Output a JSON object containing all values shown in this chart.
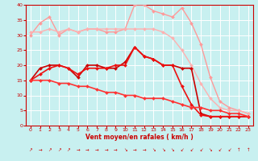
{
  "title": "",
  "xlabel": "Vent moyen/en rafales ( km/h )",
  "bg_color": "#c8f0f0",
  "grid_color": "#ffffff",
  "xlim": [
    -0.5,
    23.5
  ],
  "ylim": [
    0,
    40
  ],
  "yticks": [
    0,
    5,
    10,
    15,
    20,
    25,
    30,
    35,
    40
  ],
  "xticks": [
    0,
    1,
    2,
    3,
    4,
    5,
    6,
    7,
    8,
    9,
    10,
    11,
    12,
    13,
    14,
    15,
    16,
    17,
    18,
    19,
    20,
    21,
    22,
    23
  ],
  "series": [
    {
      "x": [
        0,
        1,
        2,
        3,
        4,
        5,
        6,
        7,
        8,
        9,
        10,
        11,
        12,
        13,
        14,
        15,
        16,
        17,
        18,
        19,
        20,
        21,
        22,
        23
      ],
      "y": [
        30,
        34,
        36,
        30,
        32,
        31,
        32,
        32,
        31,
        31,
        32,
        40,
        40,
        38,
        37,
        36,
        39,
        34,
        27,
        16,
        8,
        6,
        5,
        4
      ],
      "color": "#ff9999",
      "lw": 1.0,
      "marker": "D",
      "ms": 2.0
    },
    {
      "x": [
        0,
        1,
        2,
        3,
        4,
        5,
        6,
        7,
        8,
        9,
        10,
        11,
        12,
        13,
        14,
        15,
        16,
        17,
        18,
        19,
        20,
        21,
        22,
        23
      ],
      "y": [
        31,
        31,
        32,
        31,
        32,
        31,
        32,
        32,
        32,
        32,
        32,
        32,
        32,
        32,
        31,
        29,
        25,
        20,
        14,
        9,
        6,
        5,
        5,
        4
      ],
      "color": "#ffb0b0",
      "lw": 1.0,
      "marker": "D",
      "ms": 2.0
    },
    {
      "x": [
        0,
        1,
        2,
        3,
        4,
        5,
        6,
        7,
        8,
        9,
        10,
        11,
        12,
        13,
        14,
        15,
        16,
        17,
        18,
        19,
        20,
        21,
        22,
        23
      ],
      "y": [
        15,
        19,
        20,
        20,
        19,
        16,
        20,
        20,
        19,
        19,
        21,
        26,
        23,
        22,
        20,
        20,
        19,
        19,
        4,
        3,
        3,
        3,
        3,
        3
      ],
      "color": "#cc0000",
      "lw": 1.2,
      "marker": "D",
      "ms": 2.0
    },
    {
      "x": [
        0,
        1,
        2,
        3,
        4,
        5,
        6,
        7,
        8,
        9,
        10,
        11,
        12,
        13,
        14,
        15,
        16,
        17,
        18,
        19,
        20,
        21,
        22,
        23
      ],
      "y": [
        15,
        17,
        19,
        20,
        19,
        17,
        19,
        19,
        19,
        20,
        20,
        26,
        23,
        22,
        20,
        20,
        13,
        7,
        3.5,
        3,
        3,
        3,
        3,
        3
      ],
      "color": "#ee1111",
      "lw": 1.2,
      "marker": "D",
      "ms": 2.0
    },
    {
      "x": [
        0,
        1,
        2,
        3,
        4,
        5,
        6,
        7,
        8,
        9,
        10,
        11,
        12,
        13,
        14,
        15,
        16,
        17,
        18,
        19,
        20,
        21,
        22,
        23
      ],
      "y": [
        15,
        15,
        15,
        14,
        14,
        13,
        13,
        12,
        11,
        11,
        10,
        10,
        9,
        9,
        9,
        8,
        7,
        6,
        6,
        5,
        5,
        4,
        4,
        3
      ],
      "color": "#ff3333",
      "lw": 1.2,
      "marker": "D",
      "ms": 2.0
    }
  ],
  "wind_arrows": [
    "↗",
    "→",
    "↗",
    "↗",
    "↗",
    "→",
    "→",
    "→",
    "→",
    "→",
    "↘",
    "→",
    "→",
    "↘",
    "↘",
    "↘",
    "↙",
    "↙",
    "↙",
    "↘",
    "↙",
    "↙",
    "↑",
    "↑"
  ]
}
